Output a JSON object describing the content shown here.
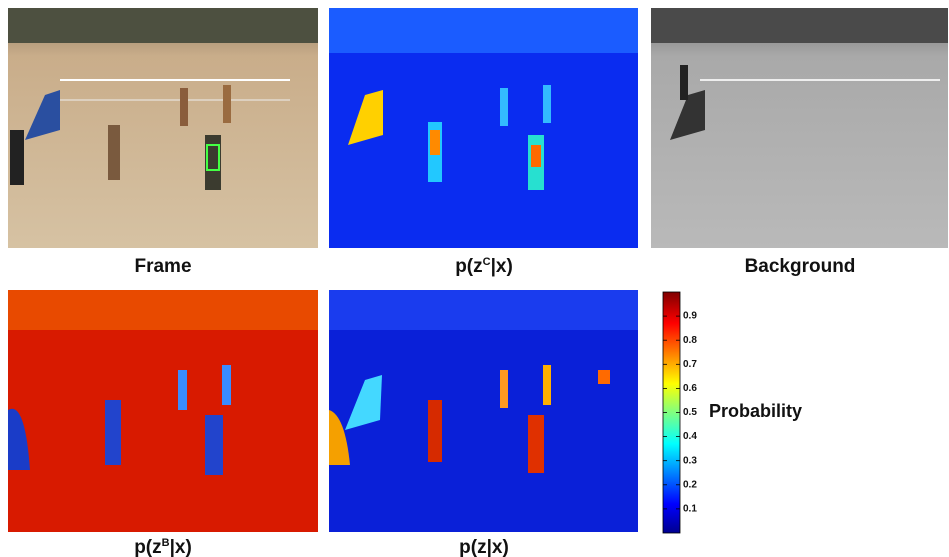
{
  "panels": [
    {
      "caption": "Frame"
    },
    {
      "caption": {
        "main": "p(z",
        "sup": "C",
        "end": "|x)"
      }
    },
    {
      "caption": "Background"
    },
    {
      "caption": {
        "main": "p(z",
        "sup": "B",
        "end": "|x)"
      }
    },
    {
      "caption": "p(z|x)"
    }
  ],
  "colorbar": {
    "label": "Probability",
    "ylim": [
      0,
      1
    ],
    "ticks": [
      0.1,
      0.2,
      0.3,
      0.4,
      0.5,
      0.6,
      0.7,
      0.8,
      0.9
    ]
  }
}
